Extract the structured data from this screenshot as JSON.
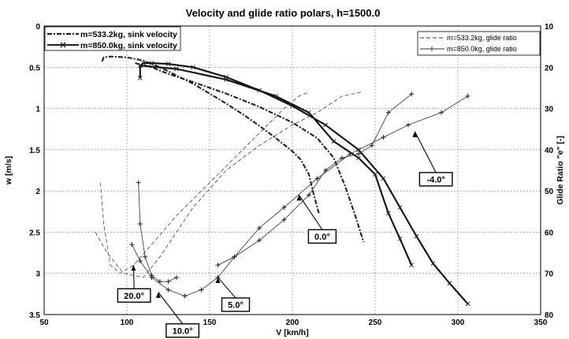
{
  "chart_data": {
    "type": "line",
    "title": "Velocity and glide ratio polars, h=1500.0",
    "xlabel": "V [km/h]",
    "ylabel_left": "w [m/s]",
    "ylabel_right": "Glide Ratio \"e\" [-]",
    "xlim": [
      50,
      350
    ],
    "ylim_left": [
      0,
      3.5
    ],
    "ylim_left_inverted": true,
    "ylim_right": [
      10,
      80
    ],
    "xticks": [
      "50",
      "100",
      "150",
      "200",
      "250",
      "300",
      "350"
    ],
    "yticks_left": [
      "0",
      "0.5",
      "1",
      "1.5",
      "2",
      "2.5",
      "3",
      "3.5"
    ],
    "yticks_right": [
      "10",
      "20",
      "30",
      "40",
      "50",
      "60",
      "70",
      "80"
    ],
    "grid": true,
    "legend_left": [
      "m=533.2kg, sink velocity",
      "m=850.0kg, sink velocity"
    ],
    "legend_right": [
      "m=533.2kg, glide ratio",
      "m=850.0kg, glide ratio"
    ],
    "series": [
      {
        "name": "m=533.2kg, sink velocity",
        "axis": "left",
        "points": [
          [
            85,
            0.43
          ],
          [
            86,
            0.38
          ],
          [
            90,
            0.37
          ],
          [
            100,
            0.38
          ],
          [
            110,
            0.42
          ],
          [
            120,
            0.5
          ],
          [
            130,
            0.6
          ],
          [
            140,
            0.7
          ],
          [
            150,
            0.82
          ],
          [
            160,
            0.94
          ],
          [
            170,
            1.07
          ],
          [
            180,
            1.21
          ],
          [
            190,
            1.36
          ],
          [
            200,
            1.52
          ],
          [
            205,
            1.62
          ],
          [
            210,
            1.8
          ],
          [
            213,
            2.05
          ],
          [
            216,
            2.27
          ]
        ]
      },
      {
        "name": "m=533.2kg, sink velocity (branch)",
        "axis": "left",
        "points": [
          [
            105,
            0.45
          ],
          [
            115,
            0.5
          ],
          [
            125,
            0.58
          ],
          [
            140,
            0.68
          ],
          [
            160,
            0.82
          ],
          [
            180,
            0.98
          ],
          [
            200,
            1.17
          ],
          [
            215,
            1.36
          ],
          [
            225,
            1.6
          ],
          [
            232,
            1.95
          ],
          [
            238,
            2.3
          ],
          [
            243,
            2.62
          ]
        ]
      },
      {
        "name": "m=850.0kg, sink velocity",
        "axis": "left",
        "points": [
          [
            108,
            0.63
          ],
          [
            108,
            0.48
          ],
          [
            110,
            0.45
          ],
          [
            115,
            0.45
          ],
          [
            125,
            0.46
          ],
          [
            140,
            0.5
          ],
          [
            160,
            0.62
          ],
          [
            180,
            0.78
          ],
          [
            200,
            0.97
          ],
          [
            220,
            1.2
          ],
          [
            240,
            1.5
          ],
          [
            255,
            1.85
          ],
          [
            265,
            2.2
          ],
          [
            275,
            2.55
          ],
          [
            285,
            2.88
          ],
          [
            295,
            3.12
          ],
          [
            306,
            3.37
          ]
        ]
      },
      {
        "name": "m=850.0kg, sink velocity (branch)",
        "axis": "left",
        "points": [
          [
            108,
            0.48
          ],
          [
            130,
            0.52
          ],
          [
            160,
            0.65
          ],
          [
            190,
            0.85
          ],
          [
            210,
            1.05
          ],
          [
            225,
            1.4
          ],
          [
            240,
            1.6
          ],
          [
            250,
            1.8
          ],
          [
            258,
            2.27
          ],
          [
            265,
            2.58
          ],
          [
            272,
            2.9
          ]
        ]
      },
      {
        "name": "m=533.2kg, glide ratio",
        "axis": "right",
        "points": [
          [
            81,
            60
          ],
          [
            88,
            65
          ],
          [
            98,
            70
          ],
          [
            110,
            71
          ],
          [
            120,
            66
          ],
          [
            140,
            54
          ],
          [
            160,
            45
          ],
          [
            180,
            39
          ],
          [
            200,
            34
          ],
          [
            215,
            31
          ],
          [
            230,
            27
          ],
          [
            242,
            26
          ]
        ]
      },
      {
        "name": "m=533.2kg, glide ratio (branch)",
        "axis": "right",
        "points": [
          [
            84,
            48
          ],
          [
            86,
            58
          ],
          [
            90,
            68
          ],
          [
            96,
            70
          ],
          [
            104,
            68
          ],
          [
            115,
            63
          ],
          [
            130,
            56
          ],
          [
            150,
            48
          ],
          [
            170,
            40
          ],
          [
            185,
            34
          ],
          [
            195,
            30
          ],
          [
            204,
            27
          ],
          [
            210,
            26
          ]
        ]
      },
      {
        "name": "m=850.0kg, glide ratio",
        "axis": "right",
        "points": [
          [
            103,
            63
          ],
          [
            108,
            67
          ],
          [
            115,
            71
          ],
          [
            125,
            74
          ],
          [
            135,
            75.5
          ],
          [
            145,
            74
          ],
          [
            155,
            71
          ],
          [
            165,
            66
          ],
          [
            180,
            59
          ],
          [
            195,
            54
          ],
          [
            215,
            47
          ],
          [
            235,
            41
          ],
          [
            255,
            37
          ],
          [
            270,
            34
          ],
          [
            290,
            31
          ],
          [
            306,
            27
          ]
        ]
      },
      {
        "name": "m=850.0kg, glide ratio (branch)",
        "axis": "right",
        "points": [
          [
            107,
            48
          ],
          [
            108,
            58
          ],
          [
            111,
            66
          ],
          [
            115,
            70.5
          ],
          [
            120,
            72
          ],
          [
            125,
            72
          ],
          [
            130,
            71
          ]
        ]
      },
      {
        "name": "m=850.0kg, glide ratio (upper)",
        "axis": "right",
        "points": [
          [
            155,
            68
          ],
          [
            165,
            66
          ],
          [
            180,
            62
          ],
          [
            195,
            57
          ],
          [
            210,
            51
          ],
          [
            220,
            45
          ],
          [
            230,
            42
          ],
          [
            240,
            41
          ],
          [
            248,
            39
          ],
          [
            258,
            31
          ],
          [
            272,
            26.5
          ]
        ]
      }
    ],
    "annotations": [
      {
        "label": "20.0°",
        "x": 104,
        "y_left": 2.9
      },
      {
        "label": "10.0°",
        "x": 119,
        "y_left": 3.23
      },
      {
        "label": "5.0°",
        "x": 155,
        "y_left": 3.05
      },
      {
        "label": "0.0°",
        "x": 204,
        "y_left": 2.05
      },
      {
        "label": "-4.0°",
        "x": 274,
        "y_left": 1.28
      }
    ]
  }
}
